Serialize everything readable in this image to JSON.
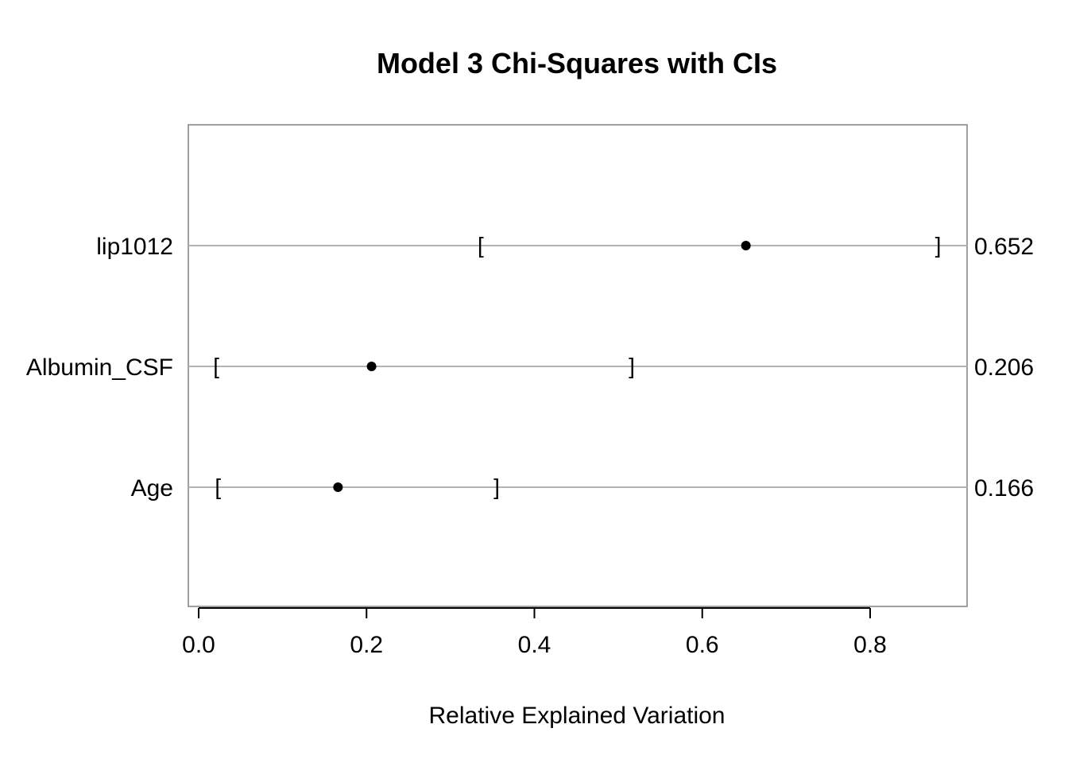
{
  "chart_data": {
    "type": "scatter",
    "title": "Model 3 Chi-Squares with CIs",
    "xlabel": "Relative Explained Variation",
    "ylabel": "",
    "xlim": [
      -0.01,
      0.915
    ],
    "xticks": [
      "0.0",
      "0.2",
      "0.4",
      "0.6",
      "0.8"
    ],
    "grid": "horizontal lines per row",
    "left_bracket": "[",
    "right_bracket": "]",
    "points": [
      {
        "label": "lip1012",
        "value": 0.652,
        "value_label": "0.652",
        "ci_low": 0.336,
        "ci_high": 0.881
      },
      {
        "label": "Albumin_CSF",
        "value": 0.206,
        "value_label": "0.206",
        "ci_low": 0.021,
        "ci_high": 0.516
      },
      {
        "label": "Age",
        "value": 0.166,
        "value_label": "0.166",
        "ci_low": 0.023,
        "ci_high": 0.355
      }
    ],
    "colors": {
      "point": "#000000",
      "gridline": "#b3b3b3",
      "frame": "#808080"
    }
  }
}
